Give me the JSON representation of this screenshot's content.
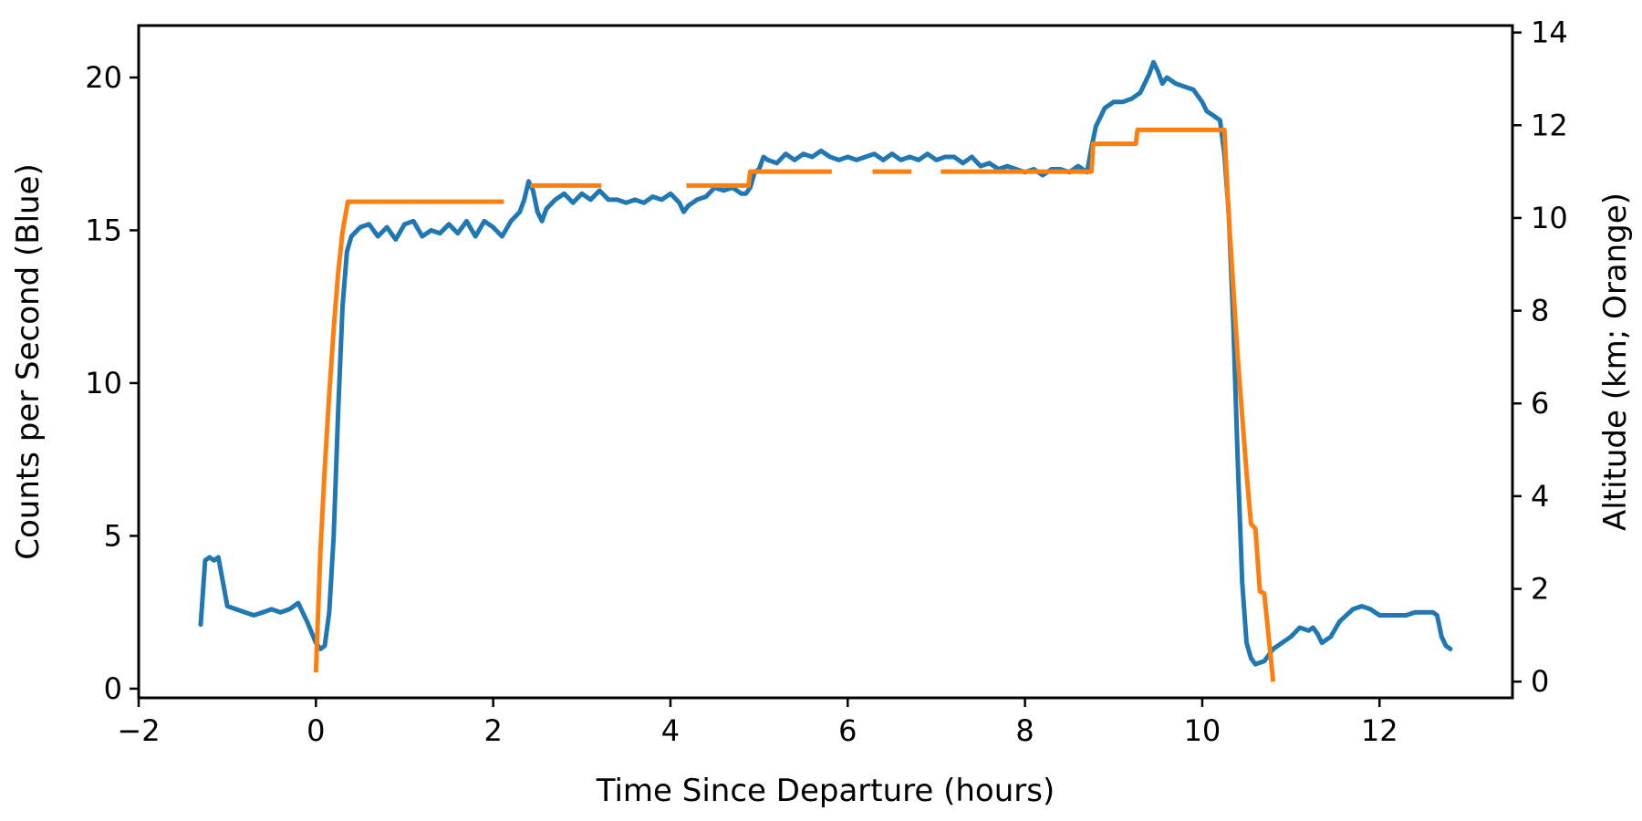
{
  "chart_data": {
    "type": "line",
    "xlabel": "Time Since Departure (hours)",
    "ylabel": "Counts per Second (Blue)",
    "y2label": "Altitude (km; Orange)",
    "xlim": [
      -2,
      13.5
    ],
    "ylim": [
      -0.3,
      21.7
    ],
    "y2lim": [
      -0.35,
      14.15
    ],
    "xticks": [
      -2,
      0,
      2,
      4,
      6,
      8,
      10,
      12
    ],
    "xtick_labels": [
      "−2",
      "0",
      "2",
      "4",
      "6",
      "8",
      "10",
      "12"
    ],
    "yticks": [
      0,
      5,
      10,
      15,
      20
    ],
    "ytick_labels": [
      "0",
      "5",
      "10",
      "15",
      "20"
    ],
    "y2ticks": [
      0,
      2,
      4,
      6,
      8,
      10,
      12,
      14
    ],
    "y2tick_labels": [
      "0",
      "2",
      "4",
      "6",
      "8",
      "10",
      "12",
      "14"
    ],
    "grid": false,
    "legend": "none",
    "series": [
      {
        "axis": "left",
        "color": "#1f77b4",
        "points": [
          [
            -1.3,
            2.1
          ],
          [
            -1.25,
            4.2
          ],
          [
            -1.2,
            4.3
          ],
          [
            -1.15,
            4.2
          ],
          [
            -1.1,
            4.3
          ],
          [
            -1.05,
            3.5
          ],
          [
            -1.0,
            2.7
          ],
          [
            -0.9,
            2.6
          ],
          [
            -0.8,
            2.5
          ],
          [
            -0.7,
            2.4
          ],
          [
            -0.6,
            2.5
          ],
          [
            -0.5,
            2.6
          ],
          [
            -0.4,
            2.5
          ],
          [
            -0.3,
            2.6
          ],
          [
            -0.2,
            2.8
          ],
          [
            -0.1,
            2.2
          ],
          [
            0.0,
            1.5
          ],
          [
            0.05,
            1.3
          ],
          [
            0.1,
            1.4
          ],
          [
            0.15,
            2.5
          ],
          [
            0.2,
            5.0
          ],
          [
            0.25,
            9.0
          ],
          [
            0.3,
            12.5
          ],
          [
            0.35,
            14.3
          ],
          [
            0.4,
            14.8
          ],
          [
            0.5,
            15.1
          ],
          [
            0.6,
            15.2
          ],
          [
            0.7,
            14.8
          ],
          [
            0.8,
            15.1
          ],
          [
            0.9,
            14.7
          ],
          [
            1.0,
            15.2
          ],
          [
            1.1,
            15.3
          ],
          [
            1.2,
            14.8
          ],
          [
            1.3,
            15.0
          ],
          [
            1.4,
            14.9
          ],
          [
            1.5,
            15.2
          ],
          [
            1.6,
            14.9
          ],
          [
            1.7,
            15.3
          ],
          [
            1.8,
            14.8
          ],
          [
            1.9,
            15.3
          ],
          [
            2.0,
            15.1
          ],
          [
            2.1,
            14.8
          ],
          [
            2.2,
            15.3
          ],
          [
            2.3,
            15.6
          ],
          [
            2.35,
            16.0
          ],
          [
            2.4,
            16.6
          ],
          [
            2.45,
            16.3
          ],
          [
            2.5,
            15.6
          ],
          [
            2.55,
            15.3
          ],
          [
            2.6,
            15.7
          ],
          [
            2.7,
            16.0
          ],
          [
            2.8,
            16.2
          ],
          [
            2.9,
            15.9
          ],
          [
            3.0,
            16.2
          ],
          [
            3.1,
            16.0
          ],
          [
            3.2,
            16.3
          ],
          [
            3.3,
            16.0
          ],
          [
            3.4,
            16.0
          ],
          [
            3.5,
            15.9
          ],
          [
            3.6,
            16.0
          ],
          [
            3.7,
            15.9
          ],
          [
            3.8,
            16.1
          ],
          [
            3.9,
            16.0
          ],
          [
            4.0,
            16.2
          ],
          [
            4.1,
            15.9
          ],
          [
            4.15,
            15.6
          ],
          [
            4.2,
            15.8
          ],
          [
            4.3,
            16.0
          ],
          [
            4.4,
            16.1
          ],
          [
            4.5,
            16.4
          ],
          [
            4.6,
            16.3
          ],
          [
            4.7,
            16.4
          ],
          [
            4.8,
            16.2
          ],
          [
            4.85,
            16.2
          ],
          [
            4.9,
            16.4
          ],
          [
            4.95,
            16.9
          ],
          [
            5.0,
            17.0
          ],
          [
            5.05,
            17.4
          ],
          [
            5.1,
            17.3
          ],
          [
            5.2,
            17.2
          ],
          [
            5.3,
            17.5
          ],
          [
            5.4,
            17.3
          ],
          [
            5.5,
            17.5
          ],
          [
            5.6,
            17.4
          ],
          [
            5.7,
            17.6
          ],
          [
            5.8,
            17.4
          ],
          [
            5.9,
            17.3
          ],
          [
            6.0,
            17.4
          ],
          [
            6.1,
            17.3
          ],
          [
            6.2,
            17.4
          ],
          [
            6.3,
            17.5
          ],
          [
            6.4,
            17.3
          ],
          [
            6.5,
            17.5
          ],
          [
            6.6,
            17.3
          ],
          [
            6.7,
            17.4
          ],
          [
            6.8,
            17.3
          ],
          [
            6.9,
            17.5
          ],
          [
            7.0,
            17.3
          ],
          [
            7.1,
            17.4
          ],
          [
            7.2,
            17.4
          ],
          [
            7.3,
            17.2
          ],
          [
            7.4,
            17.4
          ],
          [
            7.5,
            17.1
          ],
          [
            7.6,
            17.2
          ],
          [
            7.7,
            17.0
          ],
          [
            7.8,
            17.1
          ],
          [
            7.9,
            17.0
          ],
          [
            8.0,
            16.9
          ],
          [
            8.1,
            17.0
          ],
          [
            8.2,
            16.8
          ],
          [
            8.3,
            17.0
          ],
          [
            8.4,
            17.0
          ],
          [
            8.5,
            16.9
          ],
          [
            8.6,
            17.1
          ],
          [
            8.7,
            16.9
          ],
          [
            8.75,
            17.7
          ],
          [
            8.8,
            18.4
          ],
          [
            8.9,
            19.0
          ],
          [
            9.0,
            19.2
          ],
          [
            9.1,
            19.2
          ],
          [
            9.2,
            19.3
          ],
          [
            9.3,
            19.5
          ],
          [
            9.35,
            19.8
          ],
          [
            9.4,
            20.1
          ],
          [
            9.45,
            20.5
          ],
          [
            9.5,
            20.2
          ],
          [
            9.55,
            19.8
          ],
          [
            9.6,
            20.0
          ],
          [
            9.7,
            19.8
          ],
          [
            9.8,
            19.7
          ],
          [
            9.9,
            19.6
          ],
          [
            10.0,
            19.2
          ],
          [
            10.05,
            18.9
          ],
          [
            10.1,
            18.8
          ],
          [
            10.2,
            18.6
          ],
          [
            10.25,
            17.5
          ],
          [
            10.3,
            15.5
          ],
          [
            10.35,
            12.0
          ],
          [
            10.4,
            7.5
          ],
          [
            10.45,
            3.5
          ],
          [
            10.5,
            1.5
          ],
          [
            10.55,
            1.0
          ],
          [
            10.6,
            0.8
          ],
          [
            10.7,
            0.9
          ],
          [
            10.8,
            1.3
          ],
          [
            10.9,
            1.5
          ],
          [
            11.0,
            1.7
          ],
          [
            11.1,
            2.0
          ],
          [
            11.2,
            1.9
          ],
          [
            11.25,
            2.0
          ],
          [
            11.3,
            1.8
          ],
          [
            11.35,
            1.5
          ],
          [
            11.45,
            1.7
          ],
          [
            11.55,
            2.2
          ],
          [
            11.7,
            2.6
          ],
          [
            11.8,
            2.7
          ],
          [
            11.9,
            2.6
          ],
          [
            12.0,
            2.4
          ],
          [
            12.1,
            2.4
          ],
          [
            12.2,
            2.4
          ],
          [
            12.3,
            2.4
          ],
          [
            12.4,
            2.5
          ],
          [
            12.5,
            2.5
          ],
          [
            12.6,
            2.5
          ],
          [
            12.65,
            2.4
          ],
          [
            12.7,
            1.7
          ],
          [
            12.75,
            1.4
          ],
          [
            12.8,
            1.3
          ]
        ]
      },
      {
        "axis": "right",
        "color": "#ff7f0e",
        "segments": [
          [
            [
              0.0,
              0.2
            ],
            [
              0.05,
              2.8
            ],
            [
              0.1,
              4.6
            ],
            [
              0.15,
              6.2
            ],
            [
              0.2,
              7.6
            ],
            [
              0.25,
              8.8
            ],
            [
              0.3,
              9.7
            ],
            [
              0.36,
              10.35
            ],
            [
              2.12,
              10.35
            ]
          ],
          [
            [
              2.42,
              10.7
            ],
            [
              3.22,
              10.7
            ]
          ],
          [
            [
              4.18,
              10.7
            ],
            [
              4.88,
              10.7
            ],
            [
              4.9,
              11.0
            ],
            [
              5.82,
              11.0
            ]
          ],
          [
            [
              6.28,
              11.0
            ],
            [
              6.72,
              11.0
            ]
          ],
          [
            [
              7.05,
              11.0
            ],
            [
              8.75,
              11.0
            ],
            [
              8.77,
              11.6
            ],
            [
              9.25,
              11.6
            ],
            [
              9.27,
              11.9
            ],
            [
              10.25,
              11.9
            ],
            [
              10.3,
              10.0
            ],
            [
              10.4,
              7.0
            ],
            [
              10.5,
              4.5
            ],
            [
              10.55,
              3.4
            ],
            [
              10.6,
              3.3
            ],
            [
              10.65,
              1.95
            ],
            [
              10.7,
              1.9
            ],
            [
              10.8,
              0.0
            ]
          ]
        ]
      }
    ]
  }
}
